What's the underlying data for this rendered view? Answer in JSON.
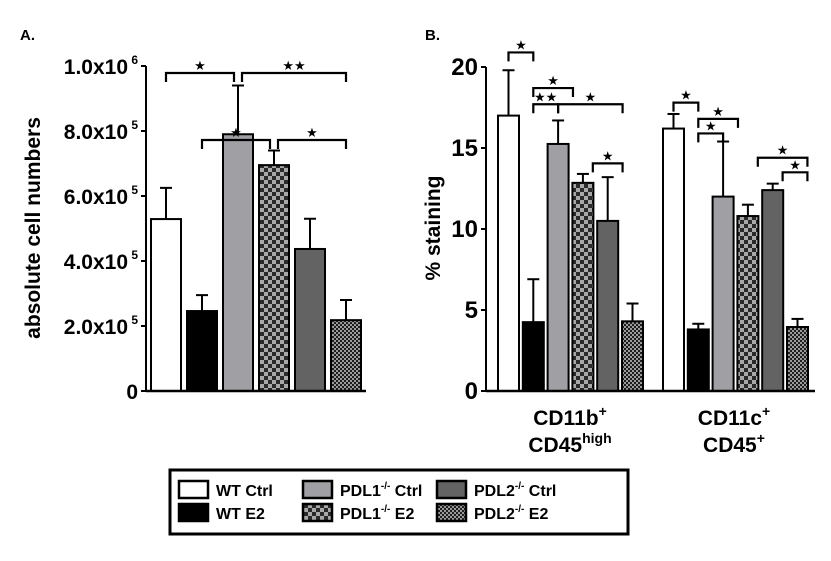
{
  "chart_data": [
    {
      "panel_label": "A.",
      "type": "bar",
      "title": "",
      "xlabel": "",
      "ylabel": "absolute cell numbers",
      "ylim": [
        0,
        1000000
      ],
      "grid": false,
      "yticks": [
        {
          "value": 0,
          "mantissa": "0",
          "exponent": ""
        },
        {
          "value": 200000,
          "mantissa": "2.0x10",
          "exponent": "5"
        },
        {
          "value": 400000,
          "mantissa": "4.0x10",
          "exponent": "5"
        },
        {
          "value": 600000,
          "mantissa": "6.0x10",
          "exponent": "5"
        },
        {
          "value": 800000,
          "mantissa": "8.0x10",
          "exponent": "5"
        },
        {
          "value": 1000000,
          "mantissa": "1.0x10",
          "exponent": "6"
        }
      ],
      "categories": [
        ""
      ],
      "series": [
        {
          "name": "WT Ctrl",
          "values": [
            529000
          ],
          "errors_upper": [
            625000
          ]
        },
        {
          "name": "WT E2",
          "values": [
            246000
          ],
          "errors_upper": [
            295000
          ]
        },
        {
          "name": "PDL1-/- Ctrl",
          "values": [
            790000
          ],
          "errors_upper": [
            940000
          ]
        },
        {
          "name": "PDL1-/- E2",
          "values": [
            695000
          ],
          "errors_upper": [
            740000
          ]
        },
        {
          "name": "PDL2-/- Ctrl",
          "values": [
            437000
          ],
          "errors_upper": [
            530000
          ]
        },
        {
          "name": "PDL2-/- E2",
          "values": [
            218000
          ],
          "errors_upper": [
            280000
          ]
        }
      ],
      "significance": [
        {
          "from": "WT Ctrl",
          "to": "PDL1-/- Ctrl",
          "label": "★",
          "level": 2
        },
        {
          "from": "PDL1-/- Ctrl",
          "to": "PDL2-/- E2",
          "label": "★★",
          "level": 2
        },
        {
          "from": "WT E2",
          "to": "PDL1-/- E2",
          "label": "★",
          "level": 1
        },
        {
          "from": "PDL1-/- E2",
          "to": "PDL2-/- E2",
          "label": "★",
          "level": 1
        }
      ]
    },
    {
      "panel_label": "B.",
      "type": "bar",
      "title": "",
      "xlabel": "",
      "ylabel": "% staining",
      "ylim": [
        0,
        20
      ],
      "grid": false,
      "yticks": [
        {
          "value": 0,
          "mantissa": "0",
          "exponent": ""
        },
        {
          "value": 5,
          "mantissa": "5",
          "exponent": ""
        },
        {
          "value": 10,
          "mantissa": "10",
          "exponent": ""
        },
        {
          "value": 15,
          "mantissa": "15",
          "exponent": ""
        },
        {
          "value": 20,
          "mantissa": "20",
          "exponent": ""
        }
      ],
      "categories": [
        {
          "line1": "CD11b",
          "sup1": "+",
          "line2": "CD45",
          "sup2": "high"
        },
        {
          "line1": "CD11c",
          "sup1": "+",
          "line2": "CD45",
          "sup2": "+"
        }
      ],
      "series": [
        {
          "name": "WT Ctrl",
          "values": [
            17.0,
            16.2
          ],
          "errors_upper": [
            19.8,
            17.1
          ]
        },
        {
          "name": "WT E2",
          "values": [
            4.25,
            3.8
          ],
          "errors_upper": [
            6.9,
            4.15
          ]
        },
        {
          "name": "PDL1-/- Ctrl",
          "values": [
            15.25,
            12.0
          ],
          "errors_upper": [
            16.7,
            15.4
          ]
        },
        {
          "name": "PDL1-/- E2",
          "values": [
            12.85,
            10.8
          ],
          "errors_upper": [
            13.4,
            11.5
          ]
        },
        {
          "name": "PDL2-/- Ctrl",
          "values": [
            10.5,
            12.4
          ],
          "errors_upper": [
            13.2,
            12.8
          ]
        },
        {
          "name": "PDL2-/- E2",
          "values": [
            4.3,
            3.95
          ],
          "errors_upper": [
            5.4,
            4.45
          ]
        }
      ],
      "significance": [
        {
          "group": 0,
          "x1": 0,
          "x2": 1,
          "label": "★",
          "value": 20.9
        },
        {
          "group": 0,
          "x1": 1,
          "x2": 2.6,
          "label": "★",
          "value": 18.7
        },
        {
          "group": 0,
          "x1": 1,
          "x2": 2,
          "label": "★★",
          "value": 17.7
        },
        {
          "group": 0,
          "x1": 2,
          "x2": 4.6,
          "label": "★",
          "value": 17.7
        },
        {
          "group": 0,
          "x1": 3.4,
          "x2": 4.6,
          "label": "★",
          "value": 14.05
        },
        {
          "group": 1,
          "x1": 0,
          "x2": 1,
          "label": "★",
          "value": 17.8
        },
        {
          "group": 1,
          "x1": 1,
          "x2": 2.6,
          "label": "★",
          "value": 16.8
        },
        {
          "group": 1,
          "x1": 1,
          "x2": 2,
          "label": "★",
          "value": 15.9
        },
        {
          "group": 1,
          "x1": 3.4,
          "x2": 5.4,
          "label": "★",
          "value": 14.4
        },
        {
          "group": 1,
          "x1": 4.4,
          "x2": 5.4,
          "label": "★",
          "value": 13.5
        }
      ]
    }
  ],
  "legend": {
    "placement": "bottom-center",
    "items": [
      {
        "base": "WT Ctrl",
        "sup": "",
        "suffix": "",
        "fill": "white"
      },
      {
        "base": "WT E2",
        "sup": "",
        "suffix": "",
        "fill": "black"
      },
      {
        "base": "PDL1",
        "sup": "-/-",
        "suffix": " Ctrl",
        "fill": "lightgray"
      },
      {
        "base": "PDL1",
        "sup": "-/-",
        "suffix": " E2",
        "fill": "checker-large"
      },
      {
        "base": "PDL2",
        "sup": "-/-",
        "suffix": " Ctrl",
        "fill": "darkgray"
      },
      {
        "base": "PDL2",
        "sup": "-/-",
        "suffix": " E2",
        "fill": "checker-small"
      }
    ]
  },
  "colors": {
    "white": "#ffffff",
    "black": "#000000",
    "lightgray": "#a0a0a4",
    "darkgray": "#636363",
    "checker_dark": "#2a2a2a",
    "checker_light": "#a8a8a8"
  }
}
